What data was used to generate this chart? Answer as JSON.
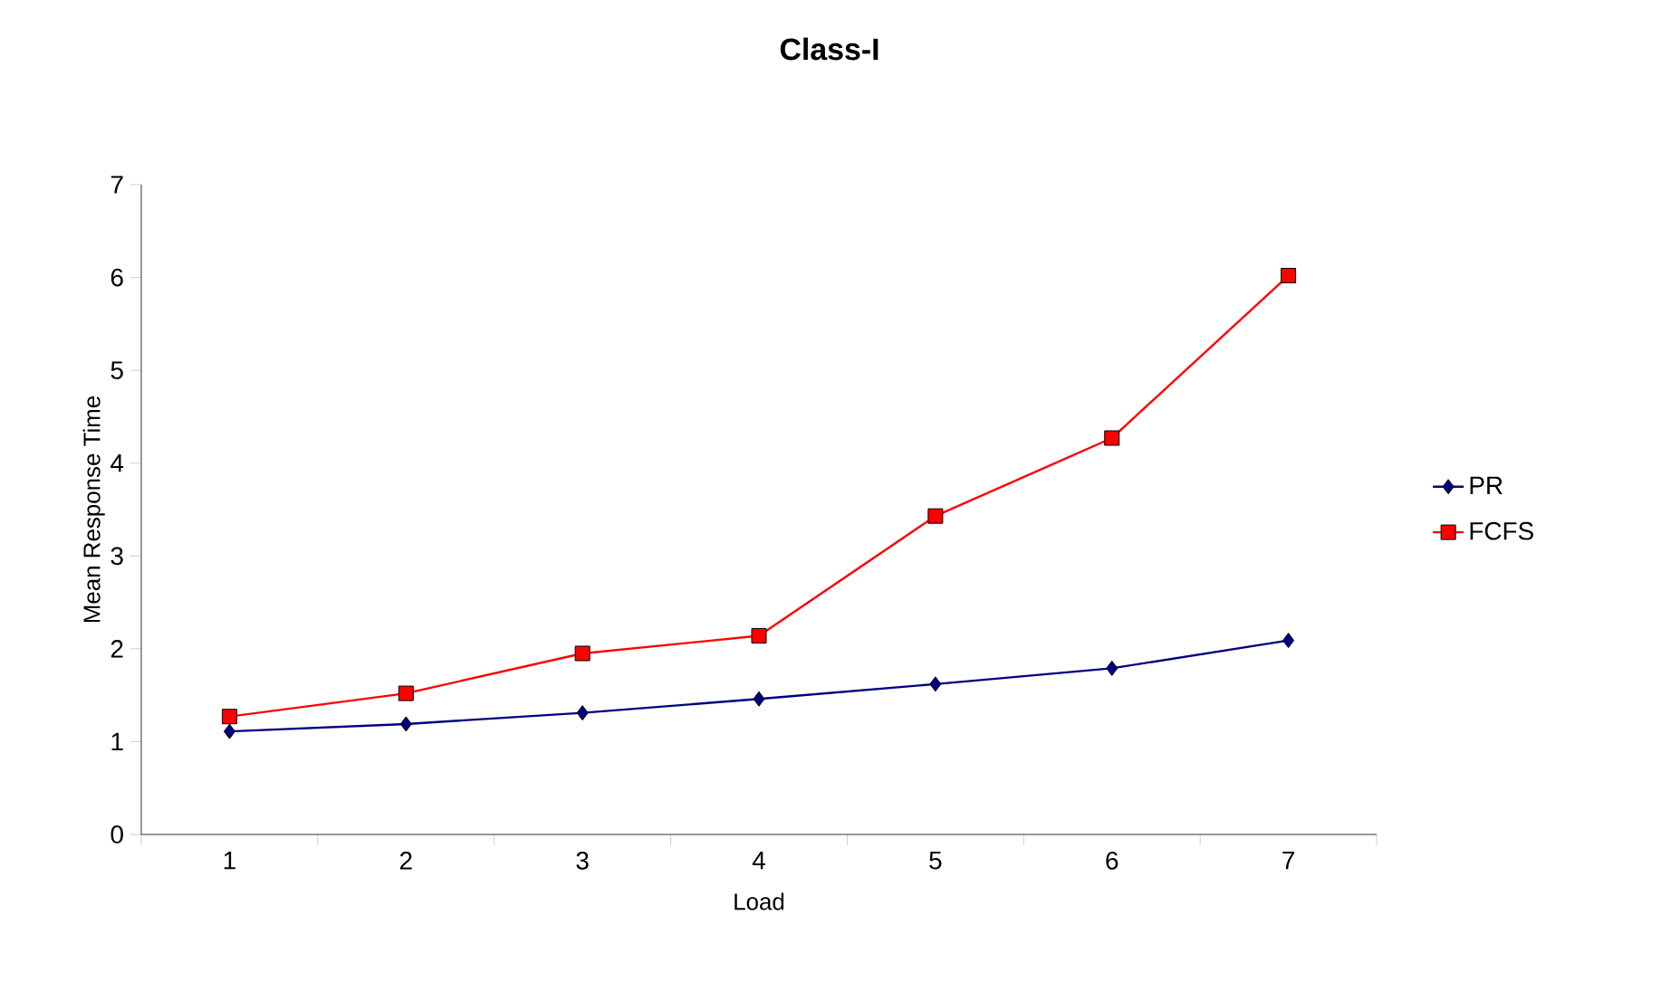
{
  "chart_data": {
    "type": "line",
    "title": "Class-I",
    "xlabel": "Load",
    "ylabel": "Mean Response Time",
    "categories": [
      "1",
      "2",
      "3",
      "4",
      "5",
      "6",
      "7"
    ],
    "series": [
      {
        "name": "PR",
        "color": "#000080",
        "marker": "diamond",
        "values": [
          1.11,
          1.19,
          1.31,
          1.46,
          1.62,
          1.79,
          2.09
        ]
      },
      {
        "name": "FCFS",
        "color": "#ff0000",
        "marker": "square",
        "values": [
          1.27,
          1.52,
          1.95,
          2.14,
          3.43,
          4.27,
          6.02
        ]
      }
    ],
    "ylim": [
      0,
      7
    ],
    "yticks": [
      0,
      1,
      2,
      3,
      4,
      5,
      6,
      7
    ],
    "legend": "right",
    "grid": false
  }
}
